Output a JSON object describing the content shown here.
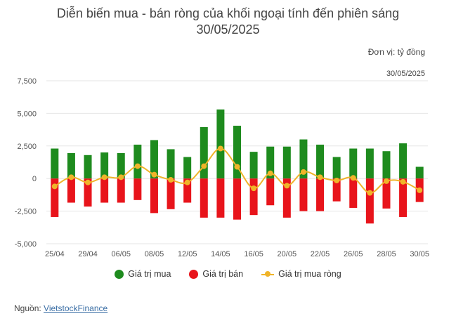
{
  "header": {
    "title_line1": "Diễn biến mua - bán ròng của khối ngoại tính đến phiên sáng",
    "title_line2": "30/05/2025",
    "unit": "Đơn vị: tỷ đồng",
    "date_label": "30/05/2025"
  },
  "legend": {
    "buy": "Giá trị mua",
    "sell": "Giá trị bán",
    "net": "Giá trị mua ròng"
  },
  "footer": {
    "source_prefix": "Nguồn: ",
    "source_link": "VietstockFinance"
  },
  "colors": {
    "buy": "#1E8B1E",
    "sell": "#E8141B",
    "net": "#F0B429",
    "grid": "#E6E6E6"
  },
  "chart_data": {
    "type": "bar",
    "title": "Diễn biến mua - bán ròng của khối ngoại tính đến phiên sáng 30/05/2025",
    "ylabel": "Đơn vị: tỷ đồng",
    "ylim": [
      -5000,
      7500
    ],
    "yticks": [
      7500,
      5000,
      2500,
      0,
      -2500,
      -5000
    ],
    "ytick_labels": [
      "7,500",
      "5,000",
      "2,500",
      "0",
      "-2,500",
      "-5,000"
    ],
    "categories": [
      "25/04",
      "28/04",
      "29/04",
      "05/05",
      "06/05",
      "07/05",
      "08/05",
      "09/05",
      "12/05",
      "13/05",
      "14/05",
      "15/05",
      "16/05",
      "19/05",
      "20/05",
      "21/05",
      "22/05",
      "23/05",
      "26/05",
      "27/05",
      "28/05",
      "29/05",
      "30/05"
    ],
    "shown_x_labels": [
      "25/04",
      "29/04",
      "06/05",
      "08/05",
      "12/05",
      "14/05",
      "16/05",
      "20/05",
      "22/05",
      "26/05",
      "28/05",
      "30/05"
    ],
    "series": [
      {
        "name": "Giá trị mua",
        "type": "bar",
        "values": [
          2300,
          1950,
          1800,
          2000,
          1950,
          2600,
          2950,
          2250,
          1650,
          3950,
          5300,
          4050,
          2050,
          2450,
          2450,
          3000,
          2600,
          1650,
          2300,
          2300,
          2100,
          2700,
          900
        ]
      },
      {
        "name": "Giá trị bán",
        "type": "bar",
        "values": [
          -2950,
          -1850,
          -2150,
          -1850,
          -1850,
          -1650,
          -2650,
          -2350,
          -1850,
          -3000,
          -3000,
          -3150,
          -2800,
          -2050,
          -3000,
          -2500,
          -2500,
          -1750,
          -2250,
          -3450,
          -2300,
          -2950,
          -1800
        ]
      },
      {
        "name": "Giá trị mua ròng",
        "type": "line",
        "values": [
          -600,
          100,
          -300,
          100,
          100,
          950,
          300,
          -100,
          -300,
          950,
          2300,
          900,
          -750,
          400,
          -550,
          500,
          100,
          -150,
          50,
          -1100,
          -200,
          -250,
          -900
        ]
      }
    ]
  }
}
